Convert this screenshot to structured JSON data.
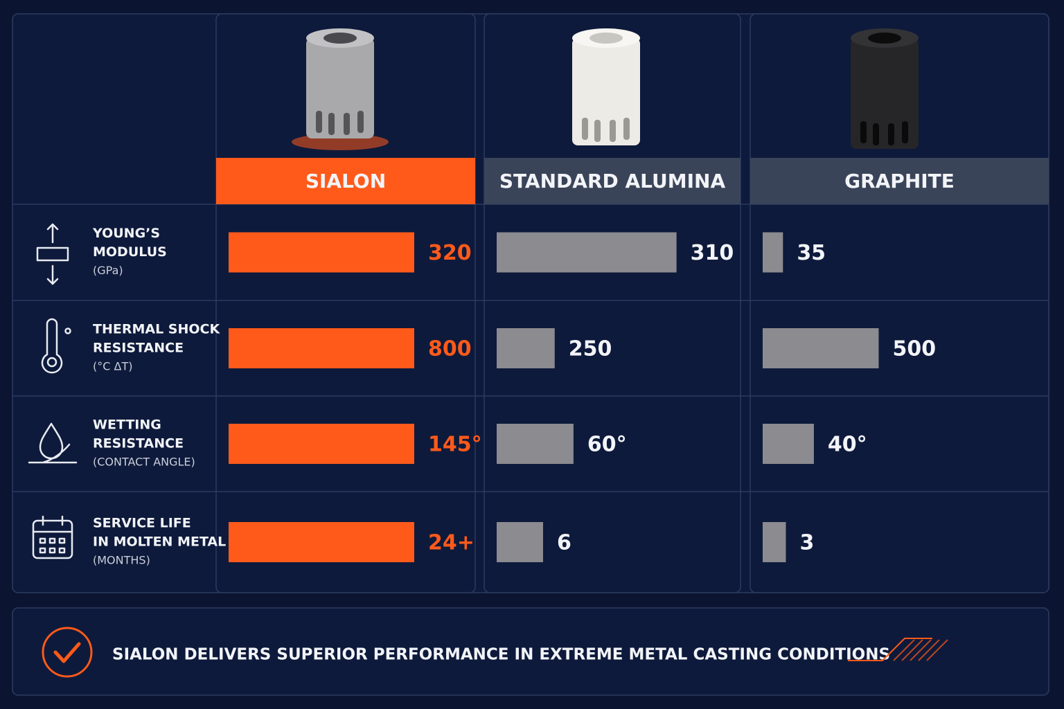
{
  "columns": [
    {
      "name": "SIALON",
      "color": "#ff5a1a"
    },
    {
      "name": "STANDARD ALUMINA",
      "color": "#8b8b90"
    },
    {
      "name": "GRAPHITE",
      "color": "#8b8b90"
    }
  ],
  "rows": [
    {
      "label": [
        "YOUNG’S",
        "MODULUS"
      ],
      "unit": "(GPa)",
      "values": [
        320,
        310,
        35
      ]
    },
    {
      "label": [
        "THERMAL SHOCK",
        "RESISTANCE"
      ],
      "unit": "(°C ΔT)",
      "values": [
        800,
        250,
        500
      ]
    },
    {
      "label": [
        "WETTING",
        "RESISTANCE"
      ],
      "unit": "(CONTACT ANGLE)",
      "values": [
        145,
        60,
        40
      ],
      "value_labels": [
        "145°",
        "60°",
        "40°"
      ]
    },
    {
      "label": [
        "SERVICE LIFE",
        "IN MOLTEN METAL"
      ],
      "unit": "(MONTHS)",
      "values": [
        24,
        6,
        3
      ],
      "value_labels": [
        "24+",
        "6",
        "3"
      ]
    }
  ],
  "footer": "SIALON DELIVERS SUPERIOR PERFORMANCE IN EXTREME METAL CASTING CONDITIONS"
}
